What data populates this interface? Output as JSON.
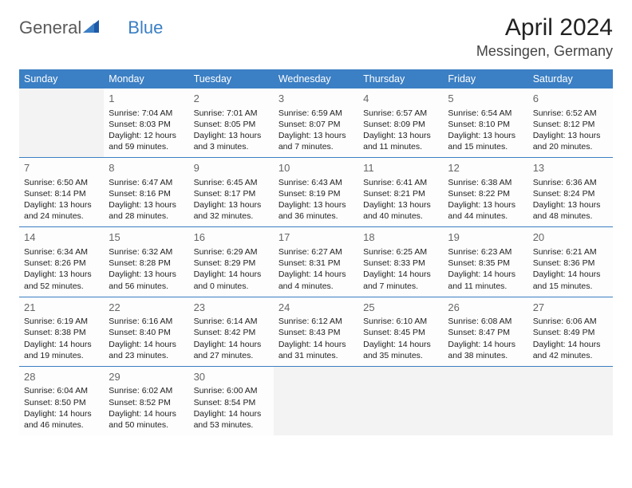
{
  "logo": {
    "text1": "General",
    "text2": "Blue"
  },
  "title": "April 2024",
  "location": "Messingen, Germany",
  "colors": {
    "accent": "#3b7fc4",
    "header_text": "#ffffff",
    "body_text": "#222222",
    "muted": "#666666",
    "empty_bg": "#f3f3f3",
    "cell_bg": "#fdfdfd",
    "logo_gray": "#5a5a5a",
    "logo_blue": "#3b7fc4",
    "border": "#3b7fc4"
  },
  "typography": {
    "title_fontsize": 30,
    "location_fontsize": 18,
    "dayheader_fontsize": 12.5,
    "daynum_fontsize": 13,
    "body_fontsize": 10.5
  },
  "day_headers": [
    "Sunday",
    "Monday",
    "Tuesday",
    "Wednesday",
    "Thursday",
    "Friday",
    "Saturday"
  ],
  "weeks": [
    [
      null,
      {
        "n": 1,
        "sunrise": "7:04 AM",
        "sunset": "8:03 PM",
        "daylight": "12 hours and 59 minutes."
      },
      {
        "n": 2,
        "sunrise": "7:01 AM",
        "sunset": "8:05 PM",
        "daylight": "13 hours and 3 minutes."
      },
      {
        "n": 3,
        "sunrise": "6:59 AM",
        "sunset": "8:07 PM",
        "daylight": "13 hours and 7 minutes."
      },
      {
        "n": 4,
        "sunrise": "6:57 AM",
        "sunset": "8:09 PM",
        "daylight": "13 hours and 11 minutes."
      },
      {
        "n": 5,
        "sunrise": "6:54 AM",
        "sunset": "8:10 PM",
        "daylight": "13 hours and 15 minutes."
      },
      {
        "n": 6,
        "sunrise": "6:52 AM",
        "sunset": "8:12 PM",
        "daylight": "13 hours and 20 minutes."
      }
    ],
    [
      {
        "n": 7,
        "sunrise": "6:50 AM",
        "sunset": "8:14 PM",
        "daylight": "13 hours and 24 minutes."
      },
      {
        "n": 8,
        "sunrise": "6:47 AM",
        "sunset": "8:16 PM",
        "daylight": "13 hours and 28 minutes."
      },
      {
        "n": 9,
        "sunrise": "6:45 AM",
        "sunset": "8:17 PM",
        "daylight": "13 hours and 32 minutes."
      },
      {
        "n": 10,
        "sunrise": "6:43 AM",
        "sunset": "8:19 PM",
        "daylight": "13 hours and 36 minutes."
      },
      {
        "n": 11,
        "sunrise": "6:41 AM",
        "sunset": "8:21 PM",
        "daylight": "13 hours and 40 minutes."
      },
      {
        "n": 12,
        "sunrise": "6:38 AM",
        "sunset": "8:22 PM",
        "daylight": "13 hours and 44 minutes."
      },
      {
        "n": 13,
        "sunrise": "6:36 AM",
        "sunset": "8:24 PM",
        "daylight": "13 hours and 48 minutes."
      }
    ],
    [
      {
        "n": 14,
        "sunrise": "6:34 AM",
        "sunset": "8:26 PM",
        "daylight": "13 hours and 52 minutes."
      },
      {
        "n": 15,
        "sunrise": "6:32 AM",
        "sunset": "8:28 PM",
        "daylight": "13 hours and 56 minutes."
      },
      {
        "n": 16,
        "sunrise": "6:29 AM",
        "sunset": "8:29 PM",
        "daylight": "14 hours and 0 minutes."
      },
      {
        "n": 17,
        "sunrise": "6:27 AM",
        "sunset": "8:31 PM",
        "daylight": "14 hours and 4 minutes."
      },
      {
        "n": 18,
        "sunrise": "6:25 AM",
        "sunset": "8:33 PM",
        "daylight": "14 hours and 7 minutes."
      },
      {
        "n": 19,
        "sunrise": "6:23 AM",
        "sunset": "8:35 PM",
        "daylight": "14 hours and 11 minutes."
      },
      {
        "n": 20,
        "sunrise": "6:21 AM",
        "sunset": "8:36 PM",
        "daylight": "14 hours and 15 minutes."
      }
    ],
    [
      {
        "n": 21,
        "sunrise": "6:19 AM",
        "sunset": "8:38 PM",
        "daylight": "14 hours and 19 minutes."
      },
      {
        "n": 22,
        "sunrise": "6:16 AM",
        "sunset": "8:40 PM",
        "daylight": "14 hours and 23 minutes."
      },
      {
        "n": 23,
        "sunrise": "6:14 AM",
        "sunset": "8:42 PM",
        "daylight": "14 hours and 27 minutes."
      },
      {
        "n": 24,
        "sunrise": "6:12 AM",
        "sunset": "8:43 PM",
        "daylight": "14 hours and 31 minutes."
      },
      {
        "n": 25,
        "sunrise": "6:10 AM",
        "sunset": "8:45 PM",
        "daylight": "14 hours and 35 minutes."
      },
      {
        "n": 26,
        "sunrise": "6:08 AM",
        "sunset": "8:47 PM",
        "daylight": "14 hours and 38 minutes."
      },
      {
        "n": 27,
        "sunrise": "6:06 AM",
        "sunset": "8:49 PM",
        "daylight": "14 hours and 42 minutes."
      }
    ],
    [
      {
        "n": 28,
        "sunrise": "6:04 AM",
        "sunset": "8:50 PM",
        "daylight": "14 hours and 46 minutes."
      },
      {
        "n": 29,
        "sunrise": "6:02 AM",
        "sunset": "8:52 PM",
        "daylight": "14 hours and 50 minutes."
      },
      {
        "n": 30,
        "sunrise": "6:00 AM",
        "sunset": "8:54 PM",
        "daylight": "14 hours and 53 minutes."
      },
      null,
      null,
      null,
      null
    ]
  ],
  "labels": {
    "sunrise": "Sunrise:",
    "sunset": "Sunset:",
    "daylight": "Daylight:"
  }
}
